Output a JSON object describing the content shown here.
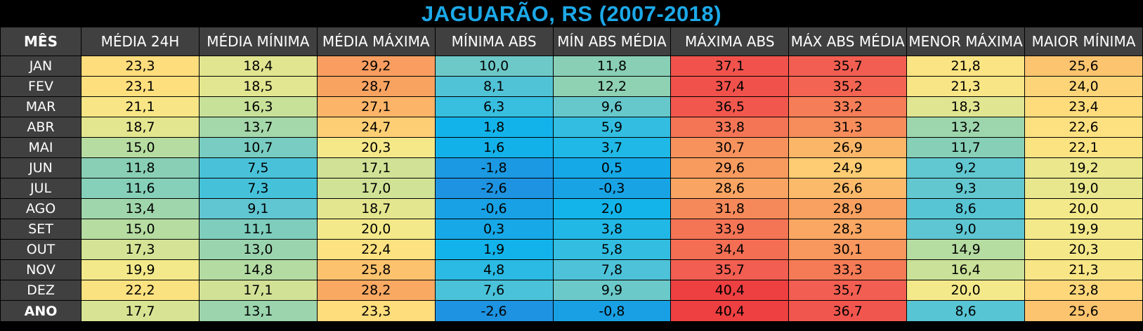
{
  "title": "JAGUARÃO, RS (2007-2018)",
  "chart_data": {
    "type": "table",
    "title": "JAGUARÃO, RS (2007-2018)",
    "columns": [
      "MÊS",
      "MÉDIA 24H",
      "MÉDIA MÍNIMA",
      "MÉDIA MÁXIMA",
      "MÍNIMA ABS",
      "MÍN ABS MÉDIA",
      "MÁXIMA ABS",
      "MÁX ABS MÉDIA",
      "MENOR MÁXIMA",
      "MAIOR MÍNIMA"
    ],
    "rows": [
      [
        "JAN",
        "23,3",
        "18,4",
        "29,2",
        "10,0",
        "11,8",
        "37,1",
        "35,7",
        "21,8",
        "25,6"
      ],
      [
        "FEV",
        "23,1",
        "18,5",
        "28,7",
        "8,1",
        "12,2",
        "37,4",
        "35,2",
        "21,3",
        "24,0"
      ],
      [
        "MAR",
        "21,1",
        "16,3",
        "27,1",
        "6,3",
        "9,6",
        "36,5",
        "33,2",
        "18,3",
        "23,4"
      ],
      [
        "ABR",
        "18,7",
        "13,7",
        "24,7",
        "1,8",
        "5,9",
        "33,8",
        "31,3",
        "13,2",
        "22,6"
      ],
      [
        "MAI",
        "15,0",
        "10,7",
        "20,3",
        "1,6",
        "3,7",
        "30,7",
        "26,9",
        "11,7",
        "22,1"
      ],
      [
        "JUN",
        "11,8",
        "7,5",
        "17,1",
        "-1,8",
        "0,5",
        "29,6",
        "24,9",
        "9,2",
        "19,2"
      ],
      [
        "JUL",
        "11,6",
        "7,3",
        "17,0",
        "-2,6",
        "-0,3",
        "28,6",
        "26,6",
        "9,3",
        "19,0"
      ],
      [
        "AGO",
        "13,4",
        "9,1",
        "18,7",
        "-0,6",
        "2,0",
        "31,8",
        "28,9",
        "8,6",
        "20,0"
      ],
      [
        "SET",
        "15,0",
        "11,1",
        "20,0",
        "0,3",
        "3,8",
        "33,9",
        "28,3",
        "9,0",
        "19,9"
      ],
      [
        "OUT",
        "17,3",
        "13,0",
        "22,4",
        "1,9",
        "5,8",
        "34,4",
        "30,1",
        "14,9",
        "20,3"
      ],
      [
        "NOV",
        "19,9",
        "14,8",
        "25,8",
        "4,8",
        "7,8",
        "35,7",
        "33,3",
        "16,4",
        "21,3"
      ],
      [
        "DEZ",
        "22,2",
        "17,1",
        "28,2",
        "7,6",
        "9,9",
        "40,4",
        "35,7",
        "20,0",
        "23,8"
      ],
      [
        "ANO",
        "17,7",
        "13,1",
        "23,3",
        "-2,6",
        "-0,8",
        "40,4",
        "36,7",
        "8,6",
        "25,6"
      ]
    ],
    "color_scale": [
      [
        -3,
        "#1e90e0"
      ],
      [
        2,
        "#12b4ea"
      ],
      [
        6,
        "#34bde0"
      ],
      [
        9,
        "#5ec6d2"
      ],
      [
        12,
        "#8cd0b4"
      ],
      [
        16,
        "#c4e09a"
      ],
      [
        20,
        "#f4e98a"
      ],
      [
        23,
        "#fee07e"
      ],
      [
        26,
        "#fcc06c"
      ],
      [
        29,
        "#f9a060"
      ],
      [
        33,
        "#f57f58"
      ],
      [
        36,
        "#f25a50"
      ],
      [
        41,
        "#ee3b3f"
      ]
    ],
    "header_bg": "#404040",
    "title_color": "#1ca9e8"
  }
}
